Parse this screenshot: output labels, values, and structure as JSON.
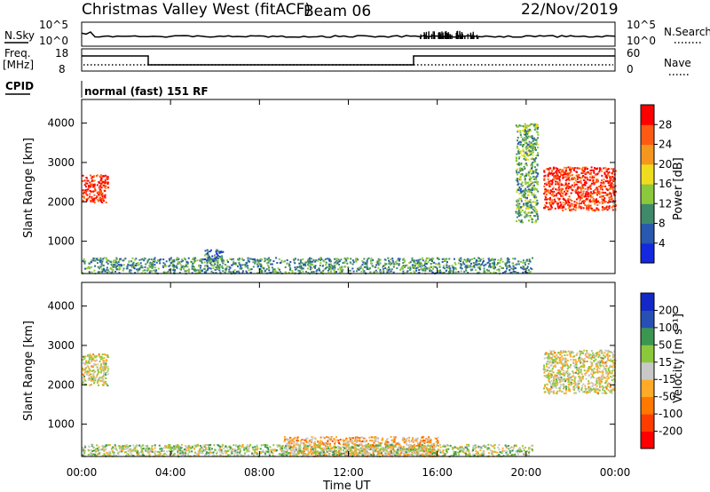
{
  "header": {
    "title": "Christmas Valley West (fitACF)",
    "beam": "Beam 06",
    "date": "22/Nov/2019",
    "program": "normal (fast) 151 RF"
  },
  "strip": {
    "nsky_label": "N.Sky",
    "nsearch_label": "N.Search",
    "freq_label": "Freq.",
    "freq_unit": "[MHz]",
    "cpid_label": "CPID",
    "nave_label": "Nave",
    "nsky_ticks": [
      "10^5",
      "10^0"
    ],
    "nsearch_ticks": [
      "10^5",
      "10^0"
    ],
    "freq_ticks": [
      "18",
      "8"
    ],
    "nave_ticks": [
      "60",
      "0"
    ]
  },
  "axes": {
    "x_label": "Time UT",
    "x_ticks": [
      "00:00",
      "04:00",
      "08:00",
      "12:00",
      "16:00",
      "20:00",
      "00:00"
    ],
    "y_label": "Slant Range [km]",
    "y_ticks": [
      "4000",
      "3000",
      "2000",
      "1000"
    ]
  },
  "colorbars": {
    "power": {
      "label": "Power [dB]",
      "ticks": [
        "28",
        "24",
        "20",
        "16",
        "12",
        "8",
        "4"
      ]
    },
    "velocity": {
      "label": "Velocity [m s⁻¹]",
      "ticks": [
        "200",
        "100",
        "50",
        "15",
        "-15",
        "-50",
        "-100",
        "-200"
      ]
    }
  },
  "chart_data": [
    {
      "type": "heatmap",
      "title": "Power",
      "xlabel": "Time UT",
      "ylabel": "Slant Range [km]",
      "xlim": [
        "00:00",
        "24:00"
      ],
      "ylim": [
        180,
        4600
      ],
      "colorbar": {
        "label": "Power [dB]",
        "range": [
          0,
          32
        ],
        "colors": [
          "#1428e0",
          "#2858b0",
          "#3f8a6a",
          "#8cc83c",
          "#f0dc1e",
          "#f5961e",
          "#ff5a14",
          "#ff0000"
        ]
      },
      "regions": [
        {
          "time": [
            "00:00",
            "01:10"
          ],
          "range_km": [
            2000,
            2700
          ],
          "power_db": 28
        },
        {
          "time": [
            "20:45",
            "24:00"
          ],
          "range_km": [
            1800,
            2900
          ],
          "power_db": 28
        },
        {
          "time": [
            "00:00",
            "20:15"
          ],
          "range_km": [
            200,
            600
          ],
          "power_db": 10
        },
        {
          "time": [
            "05:30",
            "06:20"
          ],
          "range_km": [
            500,
            800
          ],
          "power_db": 8
        },
        {
          "time": [
            "19:30",
            "20:30"
          ],
          "range_km": [
            1500,
            4000
          ],
          "power_db": 12
        }
      ]
    },
    {
      "type": "heatmap",
      "title": "Velocity",
      "xlabel": "Time UT",
      "ylabel": "Slant Range [km]",
      "xlim": [
        "00:00",
        "24:00"
      ],
      "ylim": [
        180,
        4600
      ],
      "colorbar": {
        "label": "Velocity [m s⁻¹]",
        "range": [
          -250,
          250
        ],
        "colors": [
          "#ff0000",
          "#ff3c00",
          "#ff7800",
          "#ffaa28",
          "#c8c8c8",
          "#8cc83c",
          "#3c9650",
          "#2850b4",
          "#1428c8"
        ]
      },
      "regions": [
        {
          "time": [
            "00:00",
            "01:10"
          ],
          "range_km": [
            2000,
            2800
          ],
          "velocity": 0
        },
        {
          "time": [
            "20:45",
            "24:00"
          ],
          "range_km": [
            1800,
            2900
          ],
          "velocity": 0
        },
        {
          "time": [
            "09:00",
            "16:00"
          ],
          "range_km": [
            200,
            700
          ],
          "velocity": -60
        },
        {
          "time": [
            "00:00",
            "20:15"
          ],
          "range_km": [
            200,
            500
          ],
          "velocity": 30
        }
      ]
    }
  ]
}
